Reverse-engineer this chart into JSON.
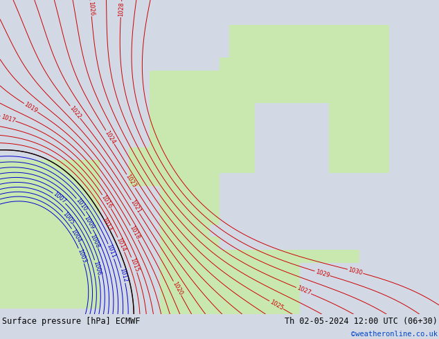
{
  "title_left": "Surface pressure [hPa] ECMWF",
  "title_right": "Th 02-05-2024 12:00 UTC (06+30)",
  "copyright": "©weatheronline.co.uk",
  "sea_color": "#d2d8e4",
  "land_color": "#c8e8b0",
  "land_color2": "#d8f0c0",
  "contour_color_high": "#cc0000",
  "contour_color_low": "#0000cc",
  "contour_color_black": "#000000",
  "label_fontsize": 6,
  "footer_fontsize": 8.5,
  "copyright_color": "#0044cc",
  "footer_bg": "#ffffff"
}
